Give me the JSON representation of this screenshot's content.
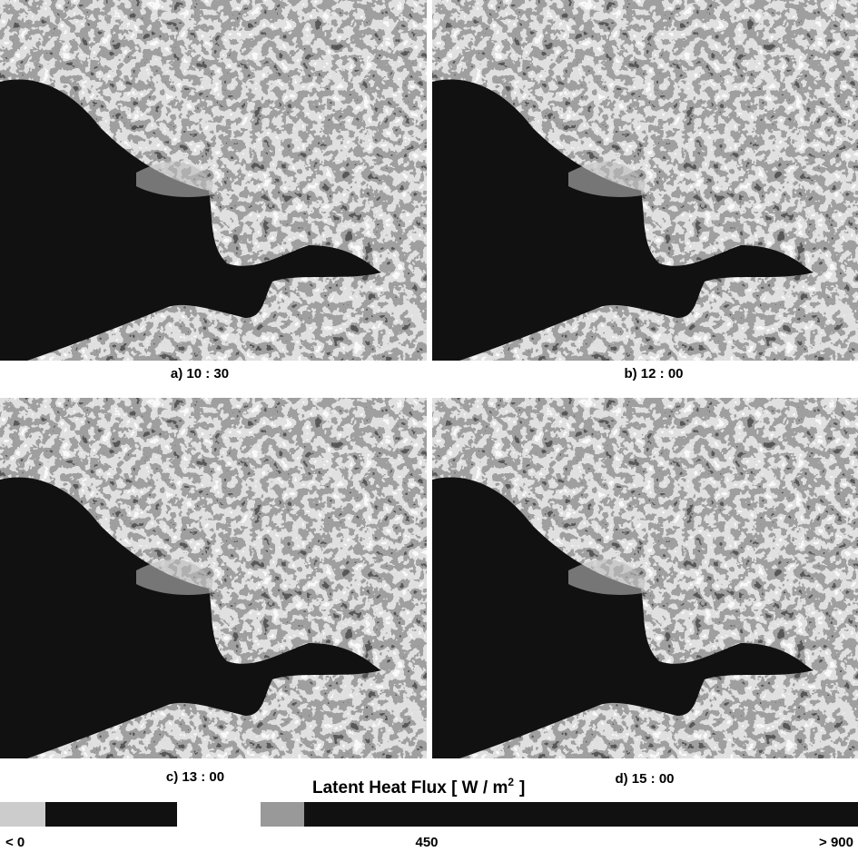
{
  "panels": [
    {
      "label": "a) 10 : 30"
    },
    {
      "label": "b) 12 : 00"
    },
    {
      "label": "c) 13 : 00"
    },
    {
      "label": "d) 15 : 00"
    }
  ],
  "colorbar": {
    "title": "Latent Heat Flux [ W / m",
    "title_superscript": "2",
    "title_end": "]",
    "labels": [
      "< 0",
      "450",
      "> 900"
    ]
  }
}
